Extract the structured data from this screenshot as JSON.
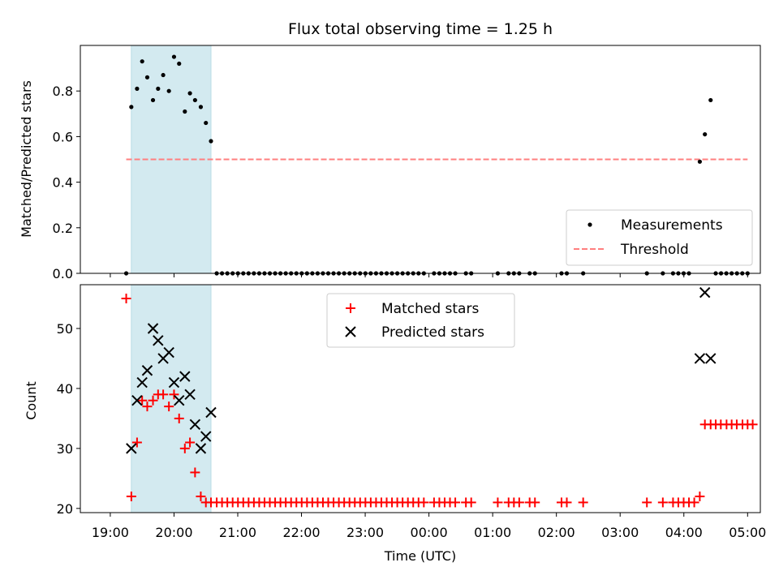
{
  "chart_data": {
    "title": "Flux total observing time = 1.25 h",
    "xlabel": "Time (UTC)",
    "x_unit": "hours (UTC, clock time; values past 24 wrap to next day)",
    "xlim": [
      18.53,
      29.2
    ],
    "xticks": [
      {
        "value": 19,
        "label": "19:00"
      },
      {
        "value": 20,
        "label": "20:00"
      },
      {
        "value": 21,
        "label": "21:00"
      },
      {
        "value": 22,
        "label": "22:00"
      },
      {
        "value": 23,
        "label": "23:00"
      },
      {
        "value": 24,
        "label": "00:00"
      },
      {
        "value": 25,
        "label": "01:00"
      },
      {
        "value": 26,
        "label": "02:00"
      },
      {
        "value": 27,
        "label": "03:00"
      },
      {
        "value": 28,
        "label": "04:00"
      },
      {
        "value": 29,
        "label": "05:00"
      }
    ],
    "shaded_interval": [
      19.33,
      20.58
    ],
    "shade_color": "#d3eaf0",
    "top": {
      "ylabel": "Matched/Predicted stars",
      "ylim": [
        0,
        1.0
      ],
      "yticks": [
        {
          "value": 0,
          "label": "0.0"
        },
        {
          "value": 0.2,
          "label": "0.2"
        },
        {
          "value": 0.4,
          "label": "0.4"
        },
        {
          "value": 0.6,
          "label": "0.6"
        },
        {
          "value": 0.8,
          "label": "0.8"
        }
      ],
      "threshold": {
        "value": 0.5,
        "x": [
          19.25,
          29.0
        ],
        "color": "#ff7f7f"
      },
      "legend": {
        "placement": "lower-right",
        "measurements": "Measurements",
        "threshold": "Threshold"
      },
      "measurements": [
        [
          19.25,
          0.0
        ],
        [
          19.33,
          0.73
        ],
        [
          19.42,
          0.81
        ],
        [
          19.5,
          0.93
        ],
        [
          19.58,
          0.86
        ],
        [
          19.67,
          0.76
        ],
        [
          19.75,
          0.81
        ],
        [
          19.83,
          0.87
        ],
        [
          19.92,
          0.8
        ],
        [
          20.0,
          0.95
        ],
        [
          20.08,
          0.92
        ],
        [
          20.17,
          0.71
        ],
        [
          20.25,
          0.79
        ],
        [
          20.33,
          0.76
        ],
        [
          20.42,
          0.73
        ],
        [
          20.5,
          0.66
        ],
        [
          20.58,
          0.58
        ],
        [
          28.25,
          0.49
        ],
        [
          28.33,
          0.61
        ],
        [
          28.42,
          0.76
        ]
      ],
      "zero_ranges": [
        [
          20.67,
          24.0
        ],
        [
          24.08,
          24.42
        ],
        [
          24.58,
          24.67
        ],
        [
          25.08,
          25.08
        ],
        [
          25.25,
          25.42
        ],
        [
          25.58,
          25.67
        ],
        [
          26.08,
          26.17
        ],
        [
          26.42,
          26.42
        ],
        [
          27.42,
          27.5
        ],
        [
          27.67,
          27.67
        ],
        [
          27.83,
          28.08
        ],
        [
          28.5,
          29.08
        ]
      ]
    },
    "bottom": {
      "ylabel": "Count",
      "ylim": [
        19.3,
        57.3
      ],
      "yticks": [
        {
          "value": 20,
          "label": "20"
        },
        {
          "value": 30,
          "label": "30"
        },
        {
          "value": 40,
          "label": "40"
        },
        {
          "value": 50,
          "label": "50"
        }
      ],
      "legend": {
        "placement": "top-center",
        "matched": "Matched stars",
        "predicted": "Predicted stars"
      },
      "matched_color": "#ff0000",
      "predicted_color": "#000000",
      "matched": [
        [
          19.25,
          55
        ],
        [
          19.33,
          22
        ],
        [
          19.42,
          31
        ],
        [
          19.5,
          38
        ],
        [
          19.58,
          37
        ],
        [
          19.67,
          38
        ],
        [
          19.75,
          39
        ],
        [
          19.83,
          39
        ],
        [
          19.92,
          37
        ],
        [
          20.0,
          39
        ],
        [
          20.08,
          35
        ],
        [
          20.17,
          30
        ],
        [
          20.25,
          31
        ],
        [
          20.33,
          26
        ],
        [
          20.42,
          22
        ],
        [
          20.5,
          21
        ],
        [
          20.58,
          21
        ],
        [
          28.25,
          22
        ],
        [
          28.33,
          34
        ],
        [
          28.42,
          34
        ],
        [
          28.5,
          34
        ],
        [
          28.58,
          34
        ],
        [
          28.67,
          34
        ],
        [
          28.75,
          34
        ],
        [
          28.83,
          34
        ],
        [
          28.92,
          34
        ],
        [
          29.0,
          34
        ],
        [
          29.08,
          34
        ]
      ],
      "matched_floor": {
        "value": 21,
        "ranges": [
          [
            20.67,
            24.0
          ],
          [
            24.08,
            24.42
          ],
          [
            24.58,
            24.67
          ],
          [
            25.08,
            25.08
          ],
          [
            25.25,
            25.42
          ],
          [
            25.58,
            25.67
          ],
          [
            26.08,
            26.17
          ],
          [
            26.42,
            26.42
          ],
          [
            27.42,
            27.5
          ],
          [
            27.67,
            27.67
          ],
          [
            27.83,
            28.17
          ]
        ]
      },
      "predicted": [
        [
          19.33,
          30
        ],
        [
          19.42,
          38
        ],
        [
          19.5,
          41
        ],
        [
          19.58,
          43
        ],
        [
          19.67,
          50
        ],
        [
          19.75,
          48
        ],
        [
          19.83,
          45
        ],
        [
          19.92,
          46
        ],
        [
          20.0,
          41
        ],
        [
          20.08,
          38
        ],
        [
          20.17,
          42
        ],
        [
          20.25,
          39
        ],
        [
          20.33,
          34
        ],
        [
          20.42,
          30
        ],
        [
          20.5,
          32
        ],
        [
          20.58,
          36
        ],
        [
          28.25,
          45
        ],
        [
          28.33,
          56
        ],
        [
          28.42,
          45
        ]
      ]
    }
  }
}
